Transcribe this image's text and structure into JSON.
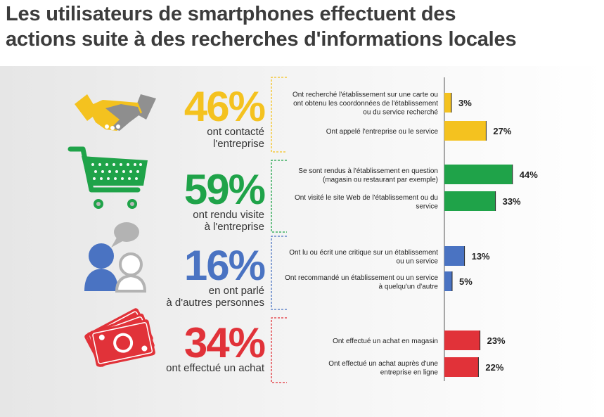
{
  "title": {
    "line1": "Les utilisateurs de smartphones effectuent des",
    "line2": "actions suite à des recherches d'informations locales"
  },
  "colors": {
    "yellow": "#f4c21f",
    "green": "#1fa349",
    "blue": "#4a73c2",
    "red": "#e13239",
    "title": "#3c3c3c"
  },
  "chart_data": {
    "type": "bar",
    "orientation": "horizontal",
    "xlim": [
      0,
      50
    ],
    "groups": [
      {
        "percent": "46%",
        "caption": [
          "ont contacté",
          "l'entreprise"
        ],
        "color": "#f4c21f",
        "icon": "handshake-icon",
        "items": [
          {
            "label": [
              "Ont recherché l'établissement sur une carte ou",
              "ont obtenu les coordonnées de l'établissement",
              "ou du service recherché"
            ],
            "value": 3,
            "value_label": "3%"
          },
          {
            "label": [
              "Ont appelé l'entreprise ou le service"
            ],
            "value": 27,
            "value_label": "27%"
          }
        ]
      },
      {
        "percent": "59%",
        "caption": [
          "ont rendu visite",
          "à l'entreprise"
        ],
        "color": "#1fa349",
        "icon": "shopping-cart-icon",
        "items": [
          {
            "label": [
              "Se sont rendus à l'établissement en question",
              "(magasin ou restaurant par exemple)"
            ],
            "value": 44,
            "value_label": "44%"
          },
          {
            "label": [
              "Ont visité le site Web de l'établissement ou du",
              "service"
            ],
            "value": 33,
            "value_label": "33%"
          }
        ]
      },
      {
        "percent": "16%",
        "caption": [
          "en ont parlé",
          "à d'autres personnes"
        ],
        "color": "#4a73c2",
        "icon": "people-talking-icon",
        "items": [
          {
            "label": [
              "Ont lu ou écrit une critique sur un établissement",
              "ou un service"
            ],
            "value": 13,
            "value_label": "13%"
          },
          {
            "label": [
              "Ont recommandé un établissement ou un service",
              "à quelqu'un d'autre"
            ],
            "value": 5,
            "value_label": "5%"
          }
        ]
      },
      {
        "percent": "34%",
        "caption": [
          "ont effectué un achat"
        ],
        "color": "#e13239",
        "icon": "banknotes-icon",
        "items": [
          {
            "label": [
              "Ont effectué un achat en magasin"
            ],
            "value": 23,
            "value_label": "23%"
          },
          {
            "label": [
              "Ont effectué un achat auprès d'une",
              "entreprise en ligne"
            ],
            "value": 22,
            "value_label": "22%"
          }
        ]
      }
    ]
  }
}
